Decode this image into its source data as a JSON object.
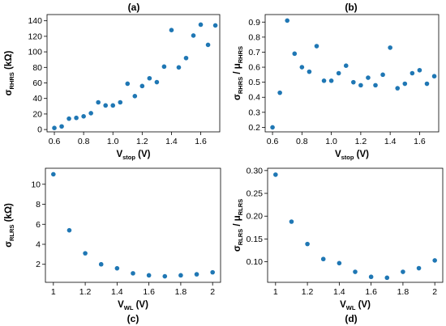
{
  "figure": {
    "panels": [
      {
        "id": "a",
        "title": "(a)"
      },
      {
        "id": "b",
        "title": "(b)"
      },
      {
        "id": "c",
        "title": "(c)"
      },
      {
        "id": "d",
        "title": "(d)"
      }
    ]
  },
  "chart_data": [
    {
      "type": "scatter",
      "title": "(a)",
      "xlabel": {
        "main": "V",
        "sub": "stop",
        "tail": " (V)"
      },
      "ylabel": {
        "main": "σ",
        "sub": "RHRS",
        "tail": " (kΩ)"
      },
      "xlim": [
        0.55,
        1.73
      ],
      "ylim": [
        -3,
        148
      ],
      "xticks": [
        0.6,
        0.8,
        1.0,
        1.2,
        1.4,
        1.6
      ],
      "xtick_labels": [
        "0.6",
        "0.8",
        "1.0",
        "1.2",
        "1.4",
        "1.6"
      ],
      "yticks": [
        0,
        20,
        40,
        60,
        80,
        100,
        120,
        140
      ],
      "ytick_labels": [
        "0",
        "20",
        "40",
        "60",
        "80",
        "100",
        "120",
        "140"
      ],
      "marker_color": "#1f77b4",
      "x": [
        0.6,
        0.65,
        0.7,
        0.75,
        0.8,
        0.85,
        0.9,
        0.95,
        1.0,
        1.05,
        1.1,
        1.15,
        1.2,
        1.25,
        1.3,
        1.35,
        1.4,
        1.45,
        1.5,
        1.55,
        1.6,
        1.65,
        1.7
      ],
      "y": [
        2,
        4,
        14,
        15,
        17,
        21,
        35,
        31,
        31,
        35,
        59,
        43,
        56,
        66,
        61,
        81,
        128,
        80,
        92,
        121,
        135,
        109,
        134
      ]
    },
    {
      "type": "scatter",
      "title": "(b)",
      "xlabel": {
        "main": "V",
        "sub": "stop",
        "tail": " (V)"
      },
      "ylabel": {
        "main": "σ",
        "sub": "RHRS",
        "tail": " / μ",
        "sub2": "RHRS"
      },
      "xlim": [
        0.55,
        1.73
      ],
      "ylim": [
        0.17,
        0.95
      ],
      "xticks": [
        0.6,
        0.8,
        1.0,
        1.2,
        1.4,
        1.6
      ],
      "xtick_labels": [
        "0.6",
        "0.8",
        "1.0",
        "1.2",
        "1.4",
        "1.6"
      ],
      "yticks": [
        0.2,
        0.3,
        0.4,
        0.5,
        0.6,
        0.7,
        0.8,
        0.9
      ],
      "ytick_labels": [
        "0.2",
        "0.3",
        "0.4",
        "0.5",
        "0.6",
        "0.7",
        "0.8",
        "0.9"
      ],
      "marker_color": "#1f77b4",
      "x": [
        0.6,
        0.65,
        0.7,
        0.75,
        0.8,
        0.85,
        0.9,
        0.95,
        1.0,
        1.05,
        1.1,
        1.15,
        1.2,
        1.25,
        1.3,
        1.35,
        1.4,
        1.45,
        1.5,
        1.55,
        1.6,
        1.65,
        1.7
      ],
      "y": [
        0.2,
        0.43,
        0.91,
        0.69,
        0.6,
        0.57,
        0.74,
        0.51,
        0.51,
        0.56,
        0.61,
        0.5,
        0.48,
        0.53,
        0.48,
        0.55,
        0.73,
        0.46,
        0.49,
        0.56,
        0.58,
        0.49,
        0.54
      ]
    },
    {
      "type": "scatter",
      "title": "(c)",
      "xlabel": {
        "main": "V",
        "sub": "WL",
        "tail": " (V)"
      },
      "ylabel": {
        "main": "σ",
        "sub": "RLRS",
        "tail": " (kΩ)"
      },
      "xlim": [
        0.95,
        2.05
      ],
      "ylim": [
        0.2,
        11.6
      ],
      "xticks": [
        1.0,
        1.2,
        1.4,
        1.6,
        1.8,
        2.0
      ],
      "xtick_labels": [
        "1",
        "1.2",
        "1.4",
        "1.6",
        "1.8",
        "2"
      ],
      "yticks": [
        2,
        4,
        6,
        8,
        10
      ],
      "ytick_labels": [
        "2",
        "4",
        "6",
        "8",
        "10"
      ],
      "marker_color": "#1f77b4",
      "x": [
        1.0,
        1.1,
        1.2,
        1.3,
        1.4,
        1.5,
        1.6,
        1.7,
        1.8,
        1.9,
        2.0
      ],
      "y": [
        11.0,
        5.4,
        3.1,
        2.0,
        1.6,
        1.1,
        0.9,
        0.8,
        0.9,
        1.0,
        1.2
      ]
    },
    {
      "type": "scatter",
      "title": "(d)",
      "xlabel": {
        "main": "V",
        "sub": "WL",
        "tail": " (V)"
      },
      "ylabel": {
        "main": "σ",
        "sub": "RLRS",
        "tail": " / μ",
        "sub2": "RLRS"
      },
      "xlim": [
        0.95,
        2.05
      ],
      "ylim": [
        0.055,
        0.305
      ],
      "xticks": [
        1.0,
        1.2,
        1.4,
        1.6,
        1.8,
        2.0
      ],
      "xtick_labels": [
        "1",
        "1.2",
        "1.4",
        "1.6",
        "1.8",
        "2"
      ],
      "yticks": [
        0.1,
        0.15,
        0.2,
        0.25,
        0.3
      ],
      "ytick_labels": [
        "0.10",
        "0.15",
        "0.20",
        "0.25",
        "0.30"
      ],
      "marker_color": "#1f77b4",
      "x": [
        1.0,
        1.1,
        1.2,
        1.3,
        1.4,
        1.5,
        1.6,
        1.7,
        1.8,
        1.9,
        2.0
      ],
      "y": [
        0.291,
        0.188,
        0.139,
        0.106,
        0.097,
        0.078,
        0.067,
        0.065,
        0.078,
        0.086,
        0.103
      ]
    }
  ]
}
